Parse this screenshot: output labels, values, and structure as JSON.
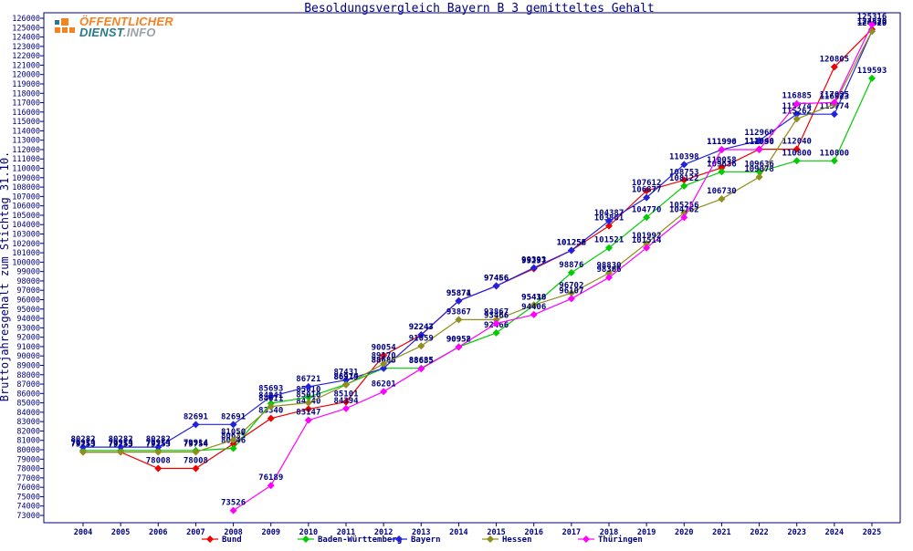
{
  "title": "Besoldungsvergleich Bayern B 3 gemitteltes Gehalt",
  "logo": {
    "line1": "ÖFFENTLICHER",
    "line2_a": "DIENST",
    "line2_b": ".INFO",
    "orange": "#f58220",
    "teal": "#2b7a8c",
    "gray": "#99a1a8"
  },
  "colors": {
    "axis": "#000080",
    "point_label": "#000080",
    "background": "#ffffff"
  },
  "y_axis": {
    "title": "Bruttojahresgehalt zum Stichtag 31.10.",
    "min": 73000,
    "max": 126000,
    "step": 1000
  },
  "x_axis": {
    "years": [
      2004,
      2005,
      2006,
      2007,
      2008,
      2009,
      2010,
      2011,
      2012,
      2013,
      2014,
      2015,
      2016,
      2017,
      2018,
      2019,
      2020,
      2021,
      2022,
      2023,
      2024,
      2025
    ]
  },
  "legend": {
    "x_positions": [
      230,
      335,
      437,
      537,
      642
    ],
    "items": [
      {
        "name": "Bund",
        "color": "#ee0000"
      },
      {
        "name": "Baden-Württemberg",
        "color": "#00cc00"
      },
      {
        "name": "Bayern",
        "color": "#2222dd"
      },
      {
        "name": "Hessen",
        "color": "#8f8f1f"
      },
      {
        "name": "Thüringen",
        "color": "#ff00ff"
      }
    ]
  },
  "chart_data": {
    "type": "line",
    "title": "Besoldungsvergleich Bayern B 3 gemitteltes Gehalt",
    "xlabel": "",
    "ylabel": "Bruttojahresgehalt zum Stichtag 31.10.",
    "ylim": [
      73000,
      126000
    ],
    "grid": false,
    "legend_position": "bottom",
    "x": [
      2004,
      2005,
      2006,
      2007,
      2008,
      2009,
      2010,
      2011,
      2012,
      2013,
      2014,
      2015,
      2016,
      2017,
      2018,
      2019,
      2020,
      2021,
      2022,
      2023,
      2024,
      2025
    ],
    "series": [
      {
        "name": "Bund",
        "color": "#ee0000",
        "values": [
          79753,
          79753,
          78008,
          78008,
          80635,
          83340,
          84340,
          85101,
          90054,
          92247,
          95874,
          97456,
          99297,
          101252,
          103861,
          107612,
          108753,
          110058,
          112040,
          112040,
          120805,
          124820
        ]
      },
      {
        "name": "Baden-Württemberg",
        "color": "#00cc00",
        "values": [
          79914,
          79914,
          79914,
          79914,
          80146,
          84941,
          85610,
          86974,
          88685,
          88685,
          90958,
          92466,
          95410,
          98876,
          101521,
          104770,
          108122,
          109636,
          109636,
          110800,
          110800,
          119593
        ]
      },
      {
        "name": "Bayern",
        "color": "#2222dd",
        "values": [
          80282,
          80282,
          80282,
          82691,
          82691,
          85693,
          86721,
          87431,
          88686,
          92243,
          95871,
          97466,
          99393,
          101256,
          104387,
          106877,
          110398,
          111990,
          112960,
          115774,
          115774,
          124620
        ]
      },
      {
        "name": "Hessen",
        "color": "#8f8f1f",
        "values": [
          79753,
          79753,
          79753,
          79754,
          81050,
          84611,
          85010,
          86919,
          89170,
          91059,
          93867,
          93867,
          95438,
          96702,
          98830,
          101992,
          105256,
          106730,
          109078,
          115262,
          116823,
          124619
        ]
      },
      {
        "name": "Thüringen",
        "color": "#ff00ff",
        "values": [
          null,
          null,
          null,
          null,
          73526,
          76189,
          83147,
          84394,
          86201,
          88635,
          90952,
          93466,
          94406,
          96107,
          98366,
          101514,
          104762,
          111996,
          111996,
          116885,
          117025,
          125316
        ]
      }
    ]
  }
}
